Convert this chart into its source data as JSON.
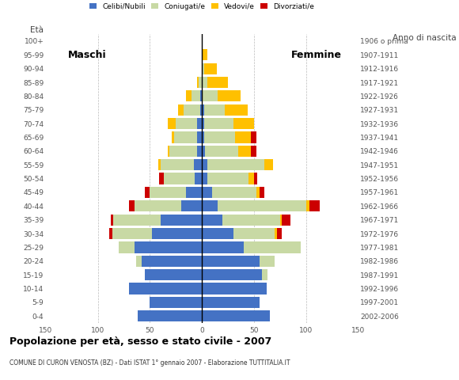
{
  "age_groups": [
    "0-4",
    "5-9",
    "10-14",
    "15-19",
    "20-24",
    "25-29",
    "30-34",
    "35-39",
    "40-44",
    "45-49",
    "50-54",
    "55-59",
    "60-64",
    "65-69",
    "70-74",
    "75-79",
    "80-84",
    "85-89",
    "90-94",
    "95-99",
    "100+"
  ],
  "birth_years": [
    "2002-2006",
    "1997-2001",
    "1992-1996",
    "1987-1991",
    "1982-1986",
    "1977-1981",
    "1972-1976",
    "1967-1971",
    "1962-1966",
    "1957-1961",
    "1952-1956",
    "1947-1951",
    "1942-1946",
    "1937-1941",
    "1932-1936",
    "1927-1931",
    "1922-1926",
    "1917-1921",
    "1912-1916",
    "1907-1911",
    "1906 o prima"
  ],
  "males": {
    "celibi": [
      62,
      50,
      70,
      55,
      58,
      65,
      48,
      40,
      20,
      15,
      7,
      8,
      5,
      5,
      5,
      2,
      2,
      0,
      0,
      0,
      0
    ],
    "coniugati": [
      0,
      0,
      0,
      0,
      5,
      15,
      38,
      45,
      45,
      35,
      30,
      32,
      26,
      22,
      20,
      16,
      8,
      3,
      0,
      0,
      0
    ],
    "vedovi": [
      0,
      0,
      0,
      0,
      0,
      0,
      0,
      0,
      0,
      0,
      0,
      2,
      2,
      2,
      8,
      5,
      5,
      2,
      0,
      0,
      0
    ],
    "divorziati": [
      0,
      0,
      0,
      0,
      0,
      0,
      3,
      3,
      5,
      5,
      4,
      0,
      0,
      0,
      0,
      0,
      0,
      0,
      0,
      0,
      0
    ]
  },
  "females": {
    "nubili": [
      65,
      55,
      62,
      58,
      55,
      40,
      30,
      20,
      15,
      10,
      5,
      5,
      3,
      2,
      2,
      2,
      0,
      0,
      0,
      0,
      0
    ],
    "coniugate": [
      0,
      0,
      0,
      5,
      15,
      55,
      40,
      55,
      85,
      42,
      40,
      55,
      32,
      30,
      28,
      20,
      15,
      5,
      2,
      0,
      0
    ],
    "vedove": [
      0,
      0,
      0,
      0,
      0,
      0,
      2,
      2,
      3,
      3,
      5,
      8,
      12,
      15,
      20,
      22,
      22,
      20,
      12,
      5,
      0
    ],
    "divorziate": [
      0,
      0,
      0,
      0,
      0,
      0,
      5,
      8,
      10,
      5,
      3,
      0,
      5,
      5,
      0,
      0,
      0,
      0,
      0,
      0,
      0
    ]
  },
  "colors": {
    "celibi": "#4472c4",
    "coniugati": "#c8d9a4",
    "vedovi": "#ffc000",
    "divorziati": "#cc0000"
  },
  "title": "Popolazione per età, sesso e stato civile - 2007",
  "subtitle": "COMUNE DI CURON VENOSTA (BZ) - Dati ISTAT 1° gennaio 2007 - Elaborazione TUTTITALIA.IT",
  "xlim": 150,
  "maschi_label": "Maschi",
  "femmine_label": "Femmine",
  "eta_label": "Età",
  "anno_label": "Anno di nascita",
  "legend_labels": [
    "Celibi/Nubili",
    "Coniugati/e",
    "Vedovi/e",
    "Divorziati/e"
  ],
  "bg_color": "#ffffff"
}
